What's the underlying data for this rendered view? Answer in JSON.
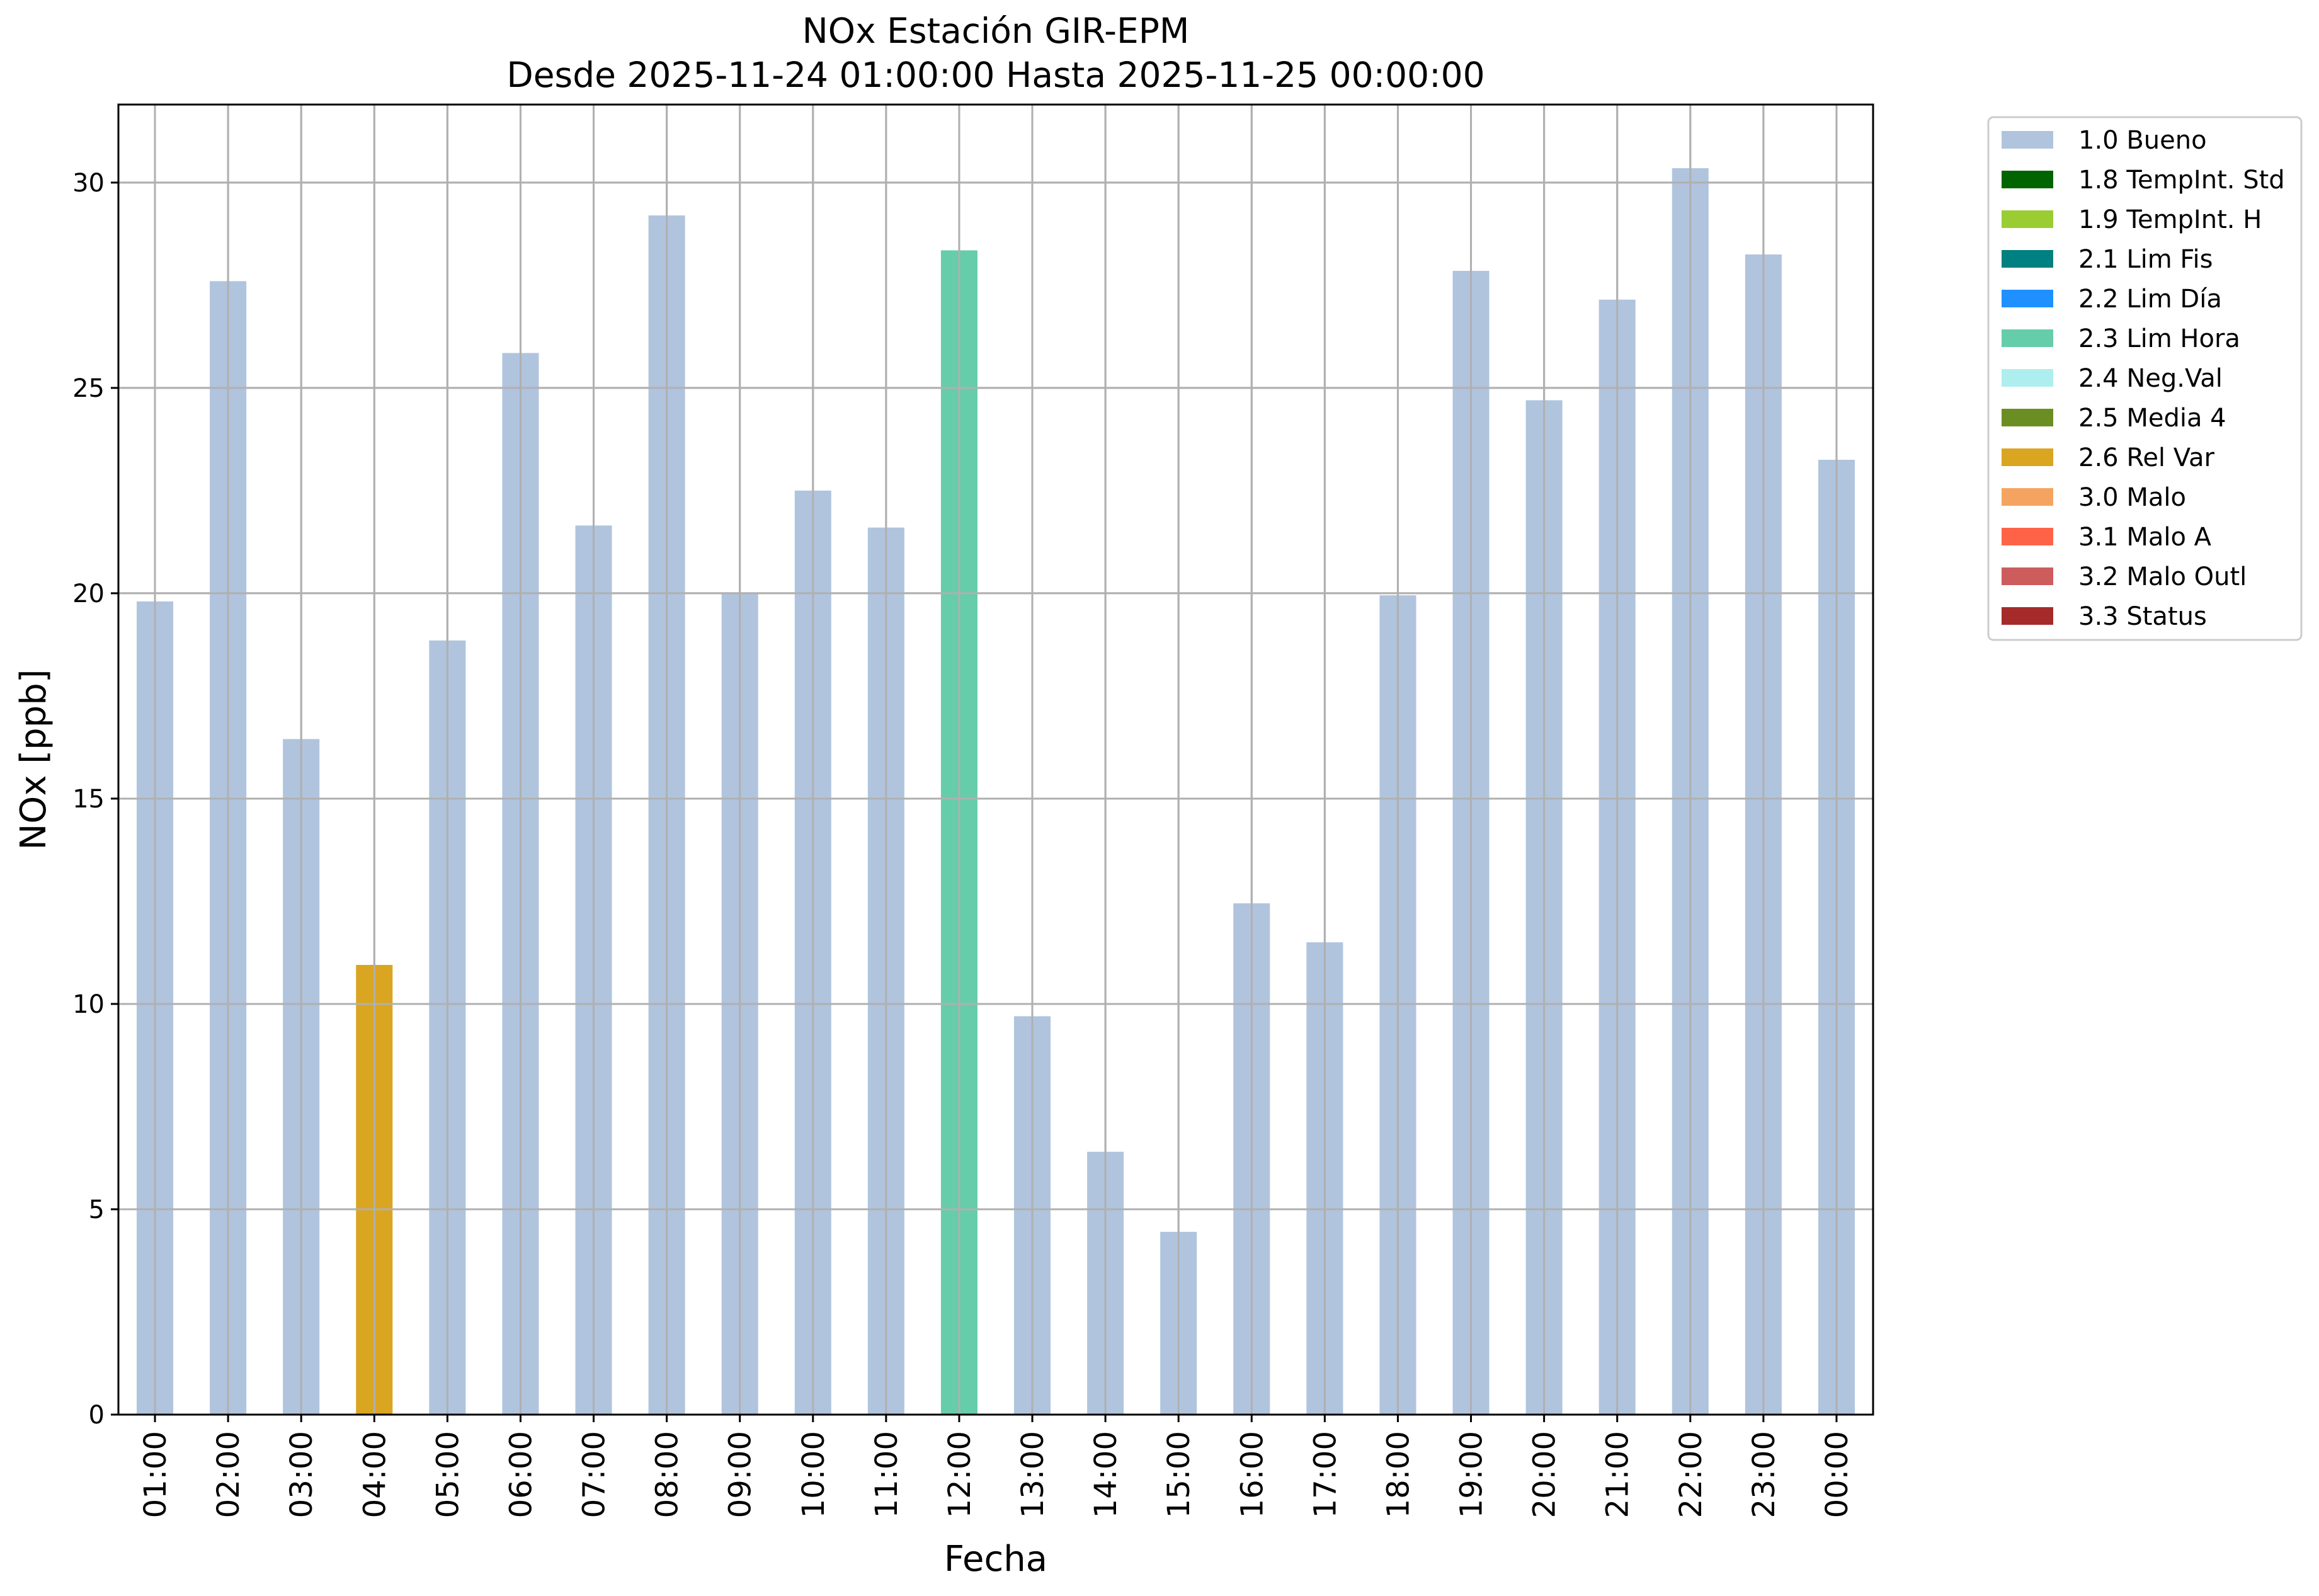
{
  "chart_data": {
    "type": "bar",
    "title_line1": "NOx Estación GIR-EPM",
    "title_line2": "Desde 2025-11-24 01:00:00 Hasta 2025-11-25 00:00:00",
    "xlabel": "Fecha",
    "ylabel": "NOx [ppb]",
    "ylim": [
      0,
      31.9
    ],
    "yticks": [
      0,
      5,
      10,
      15,
      20,
      25,
      30
    ],
    "grid": true,
    "legend_position": "outside-top-right",
    "categories": [
      "01:00",
      "02:00",
      "03:00",
      "04:00",
      "05:00",
      "06:00",
      "07:00",
      "08:00",
      "09:00",
      "10:00",
      "11:00",
      "12:00",
      "13:00",
      "14:00",
      "15:00",
      "16:00",
      "17:00",
      "18:00",
      "19:00",
      "20:00",
      "21:00",
      "22:00",
      "23:00",
      "00:00"
    ],
    "values": [
      19.8,
      27.6,
      16.45,
      10.95,
      18.85,
      25.85,
      21.65,
      29.2,
      20.0,
      22.5,
      21.6,
      28.35,
      9.7,
      6.4,
      4.45,
      12.45,
      11.5,
      19.95,
      27.85,
      24.7,
      27.15,
      30.35,
      28.25,
      23.25
    ],
    "flags": [
      "1.0 Bueno",
      "1.0 Bueno",
      "1.0 Bueno",
      "2.6 Rel Var",
      "1.0 Bueno",
      "1.0 Bueno",
      "1.0 Bueno",
      "1.0 Bueno",
      "1.0 Bueno",
      "1.0 Bueno",
      "1.0 Bueno",
      "2.3 Lim Hora",
      "1.0 Bueno",
      "1.0 Bueno",
      "1.0 Bueno",
      "1.0 Bueno",
      "1.0 Bueno",
      "1.0 Bueno",
      "1.0 Bueno",
      "1.0 Bueno",
      "1.0 Bueno",
      "1.0 Bueno",
      "1.0 Bueno",
      "1.0 Bueno"
    ],
    "legend": [
      {
        "name": "1.0 Bueno",
        "color": "#b0c4de"
      },
      {
        "name": "1.8 TempInt. Std",
        "color": "#006400"
      },
      {
        "name": "1.9 TempInt. H",
        "color": "#9acd32"
      },
      {
        "name": "2.1 Lim Fis",
        "color": "#008080"
      },
      {
        "name": "2.2 Lim Día",
        "color": "#1e90ff"
      },
      {
        "name": "2.3 Lim Hora",
        "color": "#66cdaa"
      },
      {
        "name": "2.4 Neg.Val",
        "color": "#afeeee"
      },
      {
        "name": "2.5 Media 4",
        "color": "#6b8e23"
      },
      {
        "name": "2.6 Rel Var",
        "color": "#daa520"
      },
      {
        "name": "3.0 Malo",
        "color": "#f4a460"
      },
      {
        "name": "3.1 Malo A",
        "color": "#ff6347"
      },
      {
        "name": "3.2 Malo Outl",
        "color": "#cd5c5c"
      },
      {
        "name": "3.3 Status",
        "color": "#a52a2a"
      }
    ]
  }
}
